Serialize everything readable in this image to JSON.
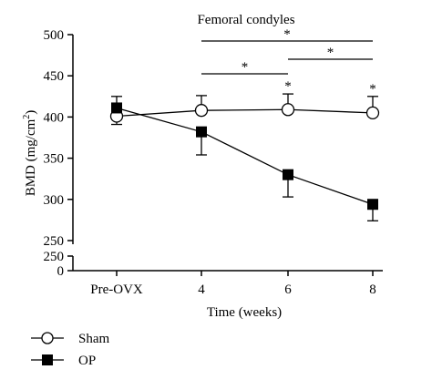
{
  "chart_data": {
    "type": "line",
    "title": "Femoral condyles",
    "xlabel": "Time (weeks)",
    "ylabel_main": "BMD (mg/cm",
    "ylabel_sup": "2",
    "ylabel_end": ")",
    "categories": [
      "Pre-OVX",
      "4",
      "6",
      "8"
    ],
    "yticks_upper": [
      250,
      300,
      350,
      400,
      450,
      500
    ],
    "yticks_lower": [
      0,
      250
    ],
    "ylim": [
      250,
      500
    ],
    "series": [
      {
        "name": "Sham",
        "marker": "open-circle",
        "values": [
          401,
          408,
          409,
          405
        ],
        "err_up": [
          12,
          18,
          19,
          20
        ],
        "err_down": [
          10,
          0,
          0,
          0
        ]
      },
      {
        "name": "OP",
        "marker": "filled-square",
        "values": [
          411,
          382,
          330,
          294
        ],
        "err_up": [
          14,
          0,
          0,
          0
        ],
        "err_down": [
          0,
          28,
          27,
          20
        ]
      }
    ],
    "brackets": [
      {
        "from": "4",
        "to": "8",
        "label": "*"
      },
      {
        "from": "6",
        "to": "8",
        "label": "*"
      },
      {
        "from": "4",
        "to": "6",
        "label": "*"
      }
    ],
    "point_annotations": [
      {
        "x": "6",
        "label": "*"
      },
      {
        "x": "8",
        "label": "*"
      }
    ],
    "legend_position": "bottom-left",
    "grid": false
  }
}
